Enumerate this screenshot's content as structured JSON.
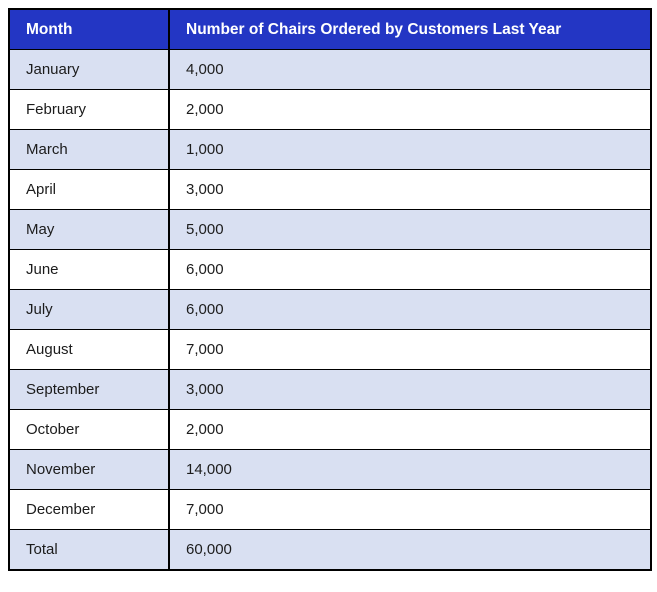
{
  "table": {
    "columns": [
      "Month",
      "Number of Chairs Ordered by Customers Last Year"
    ],
    "rows": [
      {
        "month": "January",
        "value": "4,000"
      },
      {
        "month": "February",
        "value": "2,000"
      },
      {
        "month": "March",
        "value": "1,000"
      },
      {
        "month": "April",
        "value": "3,000"
      },
      {
        "month": "May",
        "value": "5,000"
      },
      {
        "month": "June",
        "value": "6,000"
      },
      {
        "month": "July",
        "value": "6,000"
      },
      {
        "month": "August",
        "value": "7,000"
      },
      {
        "month": "September",
        "value": "3,000"
      },
      {
        "month": "October",
        "value": "2,000"
      },
      {
        "month": "November",
        "value": "14,000"
      },
      {
        "month": "December",
        "value": "7,000"
      },
      {
        "month": "Total",
        "value": "60,000"
      }
    ]
  },
  "colors": {
    "header_bg": "#2336C4",
    "header_text": "#FFFFFF",
    "row_alt_bg": "#D9E0F2",
    "row_bg": "#FFFFFF",
    "border": "#000000",
    "cell_text": "#1C1C1C"
  },
  "chart_data": {
    "type": "table",
    "title": "Number of Chairs Ordered by Customers Last Year",
    "columns": [
      "Month",
      "Number of Chairs Ordered by Customers Last Year"
    ],
    "categories": [
      "January",
      "February",
      "March",
      "April",
      "May",
      "June",
      "July",
      "August",
      "September",
      "October",
      "November",
      "December"
    ],
    "values": [
      4000,
      2000,
      1000,
      3000,
      5000,
      6000,
      6000,
      7000,
      3000,
      2000,
      14000,
      7000
    ],
    "total": 60000
  }
}
